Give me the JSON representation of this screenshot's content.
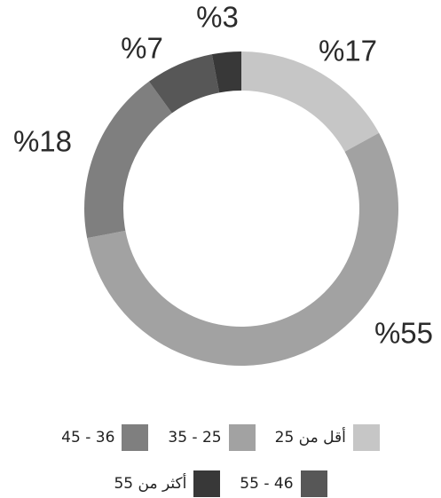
{
  "chart_data": {
    "type": "donut",
    "categories": [
      "أقل من 25",
      "25 - 35",
      "36 - 45",
      "46 - 55",
      "أكثر من 55"
    ],
    "values": [
      17,
      55,
      18,
      7,
      3
    ],
    "value_labels": [
      "%17",
      "%55",
      "%18",
      "%7",
      "%3"
    ],
    "colors": [
      "#c6c6c6",
      "#a2a2a2",
      "#7f7f7f",
      "#575757",
      "#383838"
    ]
  }
}
